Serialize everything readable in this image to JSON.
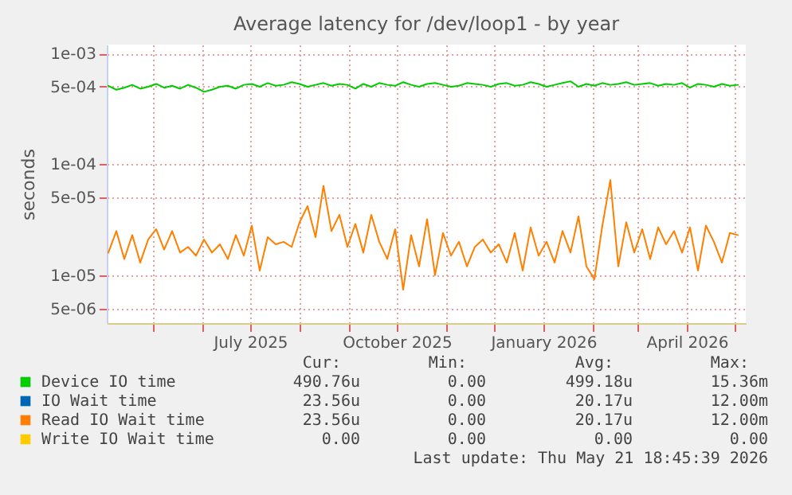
{
  "chart_data": {
    "type": "line",
    "title": "Average latency for /dev/loop1 - by year",
    "ylabel": "seconds",
    "x": [
      "2025-04-03",
      "2025-04-08",
      "2025-04-13",
      "2025-04-18",
      "2025-04-23",
      "2025-04-28",
      "2025-05-03",
      "2025-05-08",
      "2025-05-13",
      "2025-05-18",
      "2025-05-23",
      "2025-05-28",
      "2025-06-02",
      "2025-06-07",
      "2025-06-12",
      "2025-06-17",
      "2025-06-22",
      "2025-06-27",
      "2025-07-02",
      "2025-07-07",
      "2025-07-12",
      "2025-07-17",
      "2025-07-22",
      "2025-07-27",
      "2025-08-01",
      "2025-08-06",
      "2025-08-11",
      "2025-08-16",
      "2025-08-21",
      "2025-08-26",
      "2025-08-31",
      "2025-09-05",
      "2025-09-10",
      "2025-09-15",
      "2025-09-20",
      "2025-09-25",
      "2025-09-30",
      "2025-10-05",
      "2025-10-10",
      "2025-10-15",
      "2025-10-20",
      "2025-10-25",
      "2025-10-30",
      "2025-11-04",
      "2025-11-09",
      "2025-11-14",
      "2025-11-19",
      "2025-11-24",
      "2025-11-29",
      "2025-12-04",
      "2025-12-09",
      "2025-12-14",
      "2025-12-19",
      "2025-12-24",
      "2025-12-29",
      "2026-01-03",
      "2026-01-08",
      "2026-01-13",
      "2026-01-18",
      "2026-01-23",
      "2026-01-28",
      "2026-02-02",
      "2026-02-07",
      "2026-02-12",
      "2026-02-17",
      "2026-02-22",
      "2026-02-27",
      "2026-03-04",
      "2026-03-09",
      "2026-03-14",
      "2026-03-19",
      "2026-03-24",
      "2026-03-29",
      "2026-04-03",
      "2026-04-08",
      "2026-04-13",
      "2026-04-18",
      "2026-04-23",
      "2026-04-28",
      "2026-05-03"
    ],
    "series": [
      {
        "name": "Device IO time",
        "color": "#00cc00",
        "values": [
          0.00051,
          0.00047,
          0.00049,
          0.00052,
          0.00048,
          0.0005,
          0.00053,
          0.00049,
          0.00051,
          0.00048,
          0.00052,
          0.00049,
          0.00045,
          0.00047,
          0.0005,
          0.00051,
          0.00048,
          0.00052,
          0.00053,
          0.0005,
          0.00054,
          0.00051,
          0.00052,
          0.00055,
          0.00053,
          0.0005,
          0.00052,
          0.00054,
          0.00051,
          0.00053,
          0.00052,
          0.00048,
          0.00053,
          0.0005,
          0.00054,
          0.00052,
          0.00051,
          0.00055,
          0.00052,
          0.0005,
          0.00053,
          0.00054,
          0.00052,
          0.0005,
          0.00051,
          0.00054,
          0.00053,
          0.00052,
          0.0005,
          0.00053,
          0.00054,
          0.00051,
          0.00052,
          0.00055,
          0.00053,
          0.0005,
          0.00052,
          0.00054,
          0.00056,
          0.0005,
          0.00053,
          0.00051,
          0.00054,
          0.00052,
          0.00053,
          0.00055,
          0.00052,
          0.00053,
          0.00054,
          0.00051,
          0.00053,
          0.00052,
          0.00054,
          0.00049,
          0.00053,
          0.00052,
          0.0005,
          0.00053,
          0.00051,
          0.00052
        ]
      },
      {
        "name": "IO Wait time",
        "color": "#0066b3",
        "values": [
          null,
          null,
          null,
          null,
          null,
          null,
          null,
          null,
          null,
          null,
          null,
          null,
          null,
          null,
          null,
          null,
          null,
          null,
          null,
          null,
          null,
          null,
          null,
          null,
          null,
          null,
          null,
          null,
          null,
          null,
          null,
          null,
          null,
          null,
          null,
          null,
          null,
          null,
          null,
          null,
          null,
          null,
          null,
          null,
          null,
          null,
          null,
          null,
          null,
          null,
          null,
          null,
          null,
          null,
          null,
          null,
          null,
          null,
          null,
          null,
          null,
          null,
          null,
          null,
          null,
          null,
          null,
          null,
          null,
          null,
          null,
          null,
          null,
          null,
          null,
          null,
          null,
          null,
          null,
          null
        ]
      },
      {
        "name": "Read IO Wait time",
        "color": "#ff8000",
        "values": [
          1.6e-05,
          2.5e-05,
          1.4e-05,
          2.3e-05,
          1.3e-05,
          2.1e-05,
          2.6e-05,
          1.7e-05,
          2.5e-05,
          1.6e-05,
          1.8e-05,
          1.5e-05,
          2.1e-05,
          1.6e-05,
          1.9e-05,
          1.4e-05,
          2.3e-05,
          1.5e-05,
          2.8e-05,
          1.1e-05,
          2.2e-05,
          1.9e-05,
          2e-05,
          1.8e-05,
          3e-05,
          4.2e-05,
          2.2e-05,
          6.4e-05,
          2.5e-05,
          3.5e-05,
          1.8e-05,
          2.9e-05,
          1.6e-05,
          3.5e-05,
          2e-05,
          1.4e-05,
          2.6e-05,
          7.4e-06,
          2.3e-05,
          1.2e-05,
          3.2e-05,
          1e-05,
          2.4e-05,
          1.5e-05,
          2e-05,
          1.2e-05,
          1.8e-05,
          2.1e-05,
          1.6e-05,
          1.9e-05,
          1.3e-05,
          2.4e-05,
          1.1e-05,
          2.7e-05,
          1.5e-05,
          2e-05,
          1.3e-05,
          2.5e-05,
          1.6e-05,
          3.4e-05,
          1.2e-05,
          9.2e-06,
          2.8e-05,
          7.2e-05,
          1.2e-05,
          3e-05,
          1.6e-05,
          2.6e-05,
          1.4e-05,
          2.7e-05,
          1.9e-05,
          2.5e-05,
          1.6e-05,
          2.7e-05,
          1.1e-05,
          2.8e-05,
          2e-05,
          1.3e-05,
          2.4e-05,
          2.3e-05
        ]
      },
      {
        "name": "Write IO Wait time",
        "color": "#ffcc00",
        "values": [
          null,
          null,
          null,
          null,
          null,
          null,
          null,
          null,
          null,
          null,
          null,
          null,
          null,
          null,
          null,
          null,
          null,
          null,
          null,
          null,
          null,
          null,
          null,
          null,
          null,
          null,
          null,
          null,
          null,
          null,
          null,
          null,
          null,
          null,
          null,
          null,
          null,
          null,
          null,
          null,
          null,
          null,
          null,
          null,
          null,
          null,
          null,
          null,
          null,
          null,
          null,
          null,
          null,
          null,
          null,
          null,
          null,
          null,
          null,
          null,
          null,
          null,
          null,
          null,
          null,
          null,
          null,
          null,
          null,
          null,
          null,
          null,
          null,
          null,
          null,
          null,
          null,
          null,
          null,
          null
        ]
      }
    ],
    "xlim": [
      "2025-04-02",
      "2026-05-08"
    ],
    "xticks": [
      {
        "value": "2025-05-01",
        "label": null
      },
      {
        "value": "2025-06-01",
        "label": null
      },
      {
        "value": "2025-07-01",
        "label": "July 2025"
      },
      {
        "value": "2025-08-01",
        "label": null
      },
      {
        "value": "2025-09-01",
        "label": null
      },
      {
        "value": "2025-10-01",
        "label": "October 2025"
      },
      {
        "value": "2025-11-01",
        "label": null
      },
      {
        "value": "2025-12-01",
        "label": null
      },
      {
        "value": "2026-01-01",
        "label": "January 2026"
      },
      {
        "value": "2026-02-01",
        "label": null
      },
      {
        "value": "2026-03-01",
        "label": null
      },
      {
        "value": "2026-04-01",
        "label": "April 2026"
      },
      {
        "value": "2026-05-01",
        "label": null
      }
    ],
    "ylim": [
      3.7e-06,
      0.0012
    ],
    "yticks": [
      {
        "value": 5e-06,
        "label": "5e-06"
      },
      {
        "value": 1e-05,
        "label": "1e-05"
      },
      {
        "value": 5e-05,
        "label": "5e-05"
      },
      {
        "value": 0.0001,
        "label": "1e-04"
      },
      {
        "value": 0.0005,
        "label": "5e-04"
      },
      {
        "value": 0.001,
        "label": "1e-03"
      }
    ],
    "log": "y",
    "grid": true,
    "legend": "bottom",
    "annotations": [
      "Cur:",
      "Min:",
      "Avg:",
      "Max:",
      "490.76u",
      "0.00",
      "499.18u",
      "15.36m",
      "23.56u",
      "0.00",
      "20.17u",
      "12.00m",
      "23.56u",
      "0.00",
      "20.17u",
      "12.00m",
      "0.00",
      "0.00",
      "0.00",
      "0.00",
      "Last update: Thu May 21 18:45:39 2026"
    ]
  }
}
